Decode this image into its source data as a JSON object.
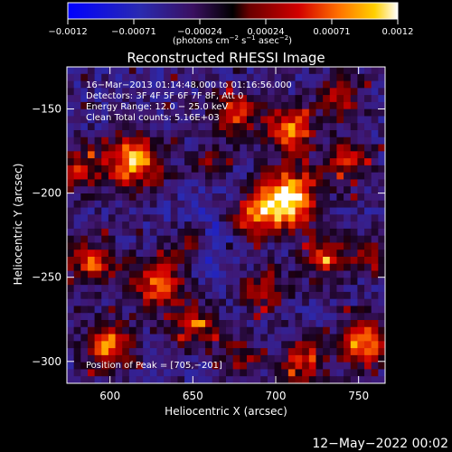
{
  "chart_data": {
    "type": "heatmap",
    "title": "Reconstructed RHESSI Image",
    "xlabel": "Heliocentric X (arcsec)",
    "ylabel": "Heliocentric Y (arcsec)",
    "xlim": [
      574,
      766
    ],
    "ylim": [
      -313,
      -125
    ],
    "x_ticks": [
      600,
      650,
      700,
      750
    ],
    "y_ticks": [
      -150,
      -200,
      -250,
      -300
    ],
    "x_tick_labels": [
      "600",
      "650",
      "700",
      "750"
    ],
    "y_tick_labels": [
      "−150",
      "−200",
      "−250",
      "−300"
    ],
    "colorbar": {
      "range": [
        -0.0012,
        0.0012
      ],
      "tick_labels": [
        "−0.0012",
        "−0.00071",
        "−0.00024",
        "0.00024",
        "0.00071",
        "0.0012"
      ],
      "unit_label_parts": [
        "(photons cm",
        "−2",
        " s",
        "−1",
        " asec",
        "−2",
        ")"
      ]
    },
    "annotations": [
      "16−Mar−2013 01:14:48.000 to 01:16:56.000",
      "Detectors: 3F 4F 5F 6F 7F 8F, Att 0",
      "Energy Range: 12.0 − 25.0 keV",
      "Clean     Total counts: 5.16E+03"
    ],
    "peak_label": "Position of Peak = [705,−201]",
    "peak_position": [
      705,
      -201
    ],
    "grid": false
  },
  "footer_date": "12−May−2022 00:02"
}
